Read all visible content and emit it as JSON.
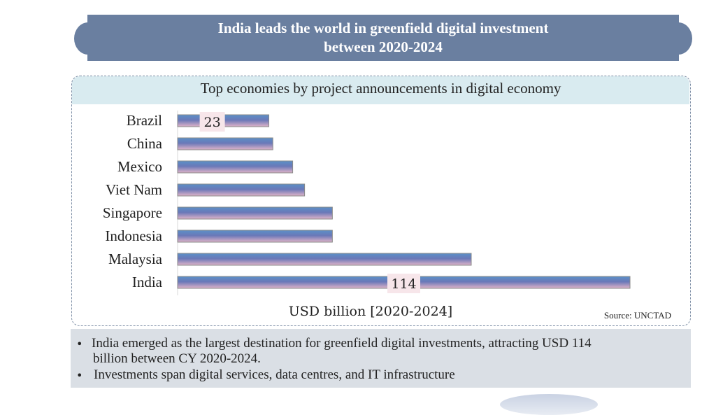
{
  "banner": {
    "title_line1": "India leads the world in greenfield digital investment",
    "title_line2": "between 2020-2024"
  },
  "panel": {
    "title": "Top economies by project announcements in digital economy",
    "source": "Source: UNCTAD"
  },
  "notes": [
    {
      "line1": "India emerged as the largest destination for greenfield digital investments, attracting USD 114",
      "line2": "billion between CY 2020-2024."
    },
    {
      "line1": "Investments span digital services, data centres, and IT infrastructure"
    }
  ],
  "colors": {
    "banner": "#6a7fa0",
    "panel_header": "#d9ebf0",
    "bar_top": "#5b8fc7",
    "bar_mid": "#6a78b8",
    "bar_bottom": "#e0b4c8",
    "label_box": "#f7e6ea",
    "notes_bg": "#dadfe5"
  },
  "chart_data": {
    "type": "bar",
    "orientation": "horizontal",
    "title": "Top economies by project announcements in digital economy",
    "xlabel": "USD billion [2020-2024]",
    "ylabel": "",
    "categories": [
      "Brazil",
      "China",
      "Mexico",
      "Viet Nam",
      "Singapore",
      "Indonesia",
      "Malaysia",
      "India"
    ],
    "values": [
      23,
      24,
      29,
      32,
      39,
      39,
      74,
      114
    ],
    "data_labels": {
      "Brazil": "23",
      "India": "114"
    },
    "xlim": [
      0,
      114
    ],
    "grid": false,
    "legend": "none"
  }
}
